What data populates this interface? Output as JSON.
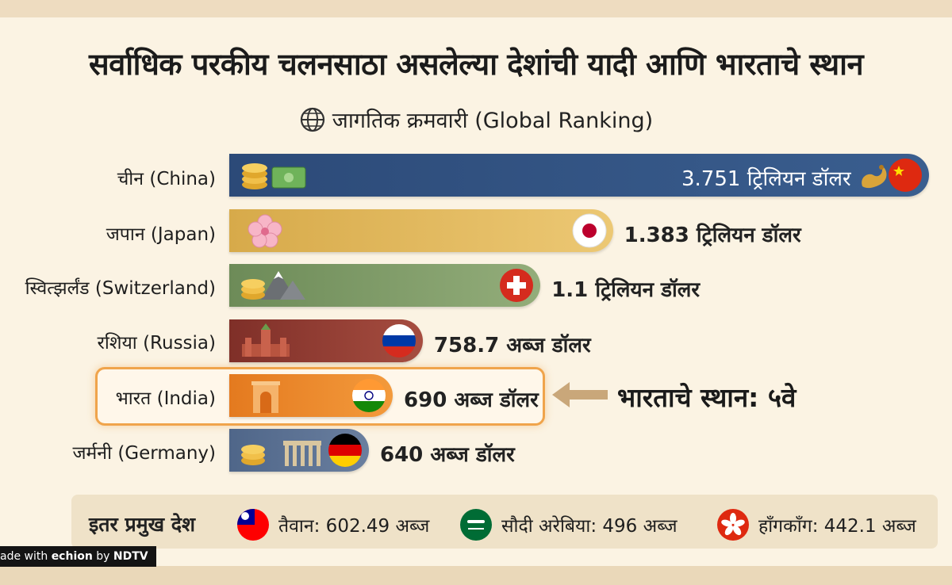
{
  "title": "सर्वाधिक परकीय चलनसाठा असलेल्या देशांची यादी आणि भारताचे स्थान",
  "subtitle": "जागतिक क्रमवारी (Global Ranking)",
  "chart_data": {
    "type": "bar",
    "orientation": "horizontal",
    "title": "सर्वाधिक परकीय चलनसाठा असलेल्या देशांची यादी आणि भारताचे स्थान",
    "subtitle": "जागतिक क्रमवारी (Global Ranking)",
    "unit": "billion USD",
    "categories": [
      "चीन (China)",
      "जपान (Japan)",
      "स्वित्झर्लंड (Switzerland)",
      "रशिया (Russia)",
      "भारत (India)",
      "जर्मनी (Germany)"
    ],
    "values": [
      3751,
      1383,
      1100,
      758.7,
      690,
      640
    ],
    "value_labels": [
      "3.751 ट्रिलियन डॉलर",
      "1.383 ट्रिलियन डॉलर",
      "1.1 ट्रिलियन डॉलर",
      "758.7 अब्ज डॉलर",
      "690 अब्ज डॉलर",
      "640 अब्ज डॉलर"
    ],
    "bar_colors": [
      "#2f4f7e",
      "#dcb256",
      "#7f9a67",
      "#8f3a31",
      "#e77f22",
      "#5a7090"
    ],
    "highlight": "भारत (India)"
  },
  "rank_note": "भारताचे स्थान: ५वे",
  "others": {
    "title": "इतर प्रमुख देश",
    "items": [
      {
        "label": "तैवान: 602.49 अब्ज",
        "icon": "taiwan-flag-icon"
      },
      {
        "label": "सौदी अरेबिया: 496 अब्ज",
        "icon": "saudi-flag-icon"
      },
      {
        "label": "हाँगकाँग: 442.1 अब्ज",
        "icon": "hongkong-flag-icon"
      }
    ]
  },
  "watermark": {
    "prefix": "ade with ",
    "brand": "echion",
    "by": " by ",
    "org": "NDTV"
  }
}
